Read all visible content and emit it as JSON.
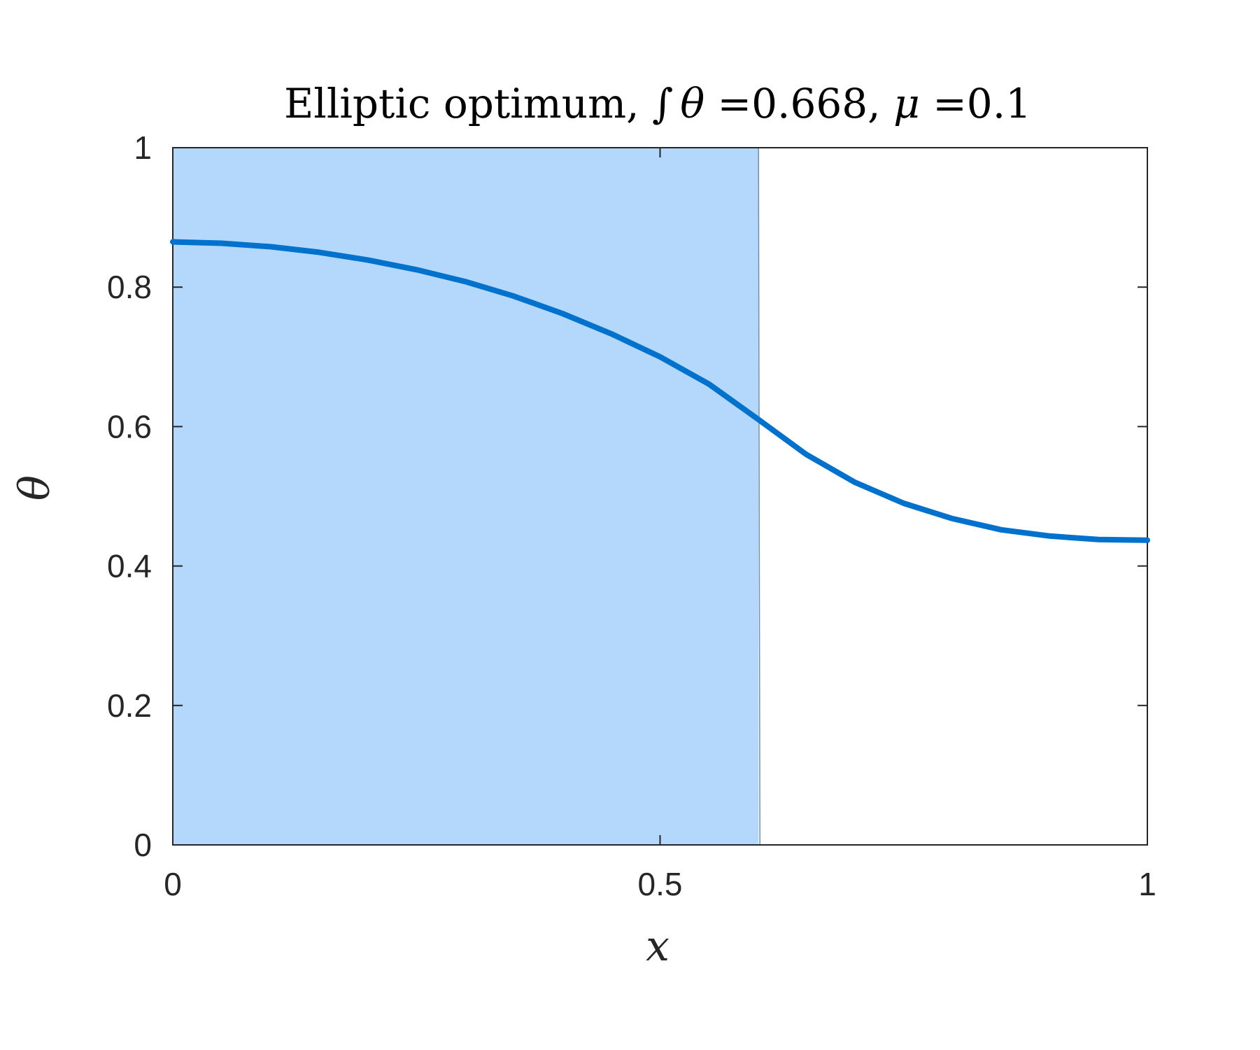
{
  "chart_data": {
    "type": "area",
    "title": {
      "prefix": "Elliptic optimum, ",
      "integral_sign": "∫",
      "integrand": "θ",
      "integral_eq": " =0.668, ",
      "mu_symbol": "μ",
      "mu_eq": " =0.1"
    },
    "xlabel": "x",
    "ylabel": "θ",
    "xlim": [
      0,
      1
    ],
    "ylim": [
      0,
      1
    ],
    "xticks": [
      0,
      0.5,
      1
    ],
    "xtick_labels": [
      "0",
      "0.5",
      "1"
    ],
    "yticks": [
      0,
      0.2,
      0.4,
      0.6,
      0.8,
      1
    ],
    "ytick_labels": [
      "0",
      "0.2",
      "0.4",
      "0.6",
      "0.8",
      "1"
    ],
    "grid": false,
    "shaded_region": {
      "x_start": 0,
      "x_end": 0.601,
      "y_start": 0,
      "y_end": 1,
      "color": "#b3d8fb"
    },
    "series": [
      {
        "color": "#0072ce",
        "x": [
          0,
          0.05,
          0.1,
          0.15,
          0.2,
          0.25,
          0.3,
          0.35,
          0.4,
          0.45,
          0.5,
          0.55,
          0.6,
          0.65,
          0.7,
          0.75,
          0.8,
          0.85,
          0.9,
          0.95,
          1
        ],
        "y": [
          0.865,
          0.863,
          0.858,
          0.85,
          0.839,
          0.825,
          0.808,
          0.787,
          0.762,
          0.733,
          0.7,
          0.661,
          0.611,
          0.56,
          0.52,
          0.49,
          0.468,
          0.452,
          0.443,
          0.438,
          0.437
        ]
      }
    ]
  }
}
